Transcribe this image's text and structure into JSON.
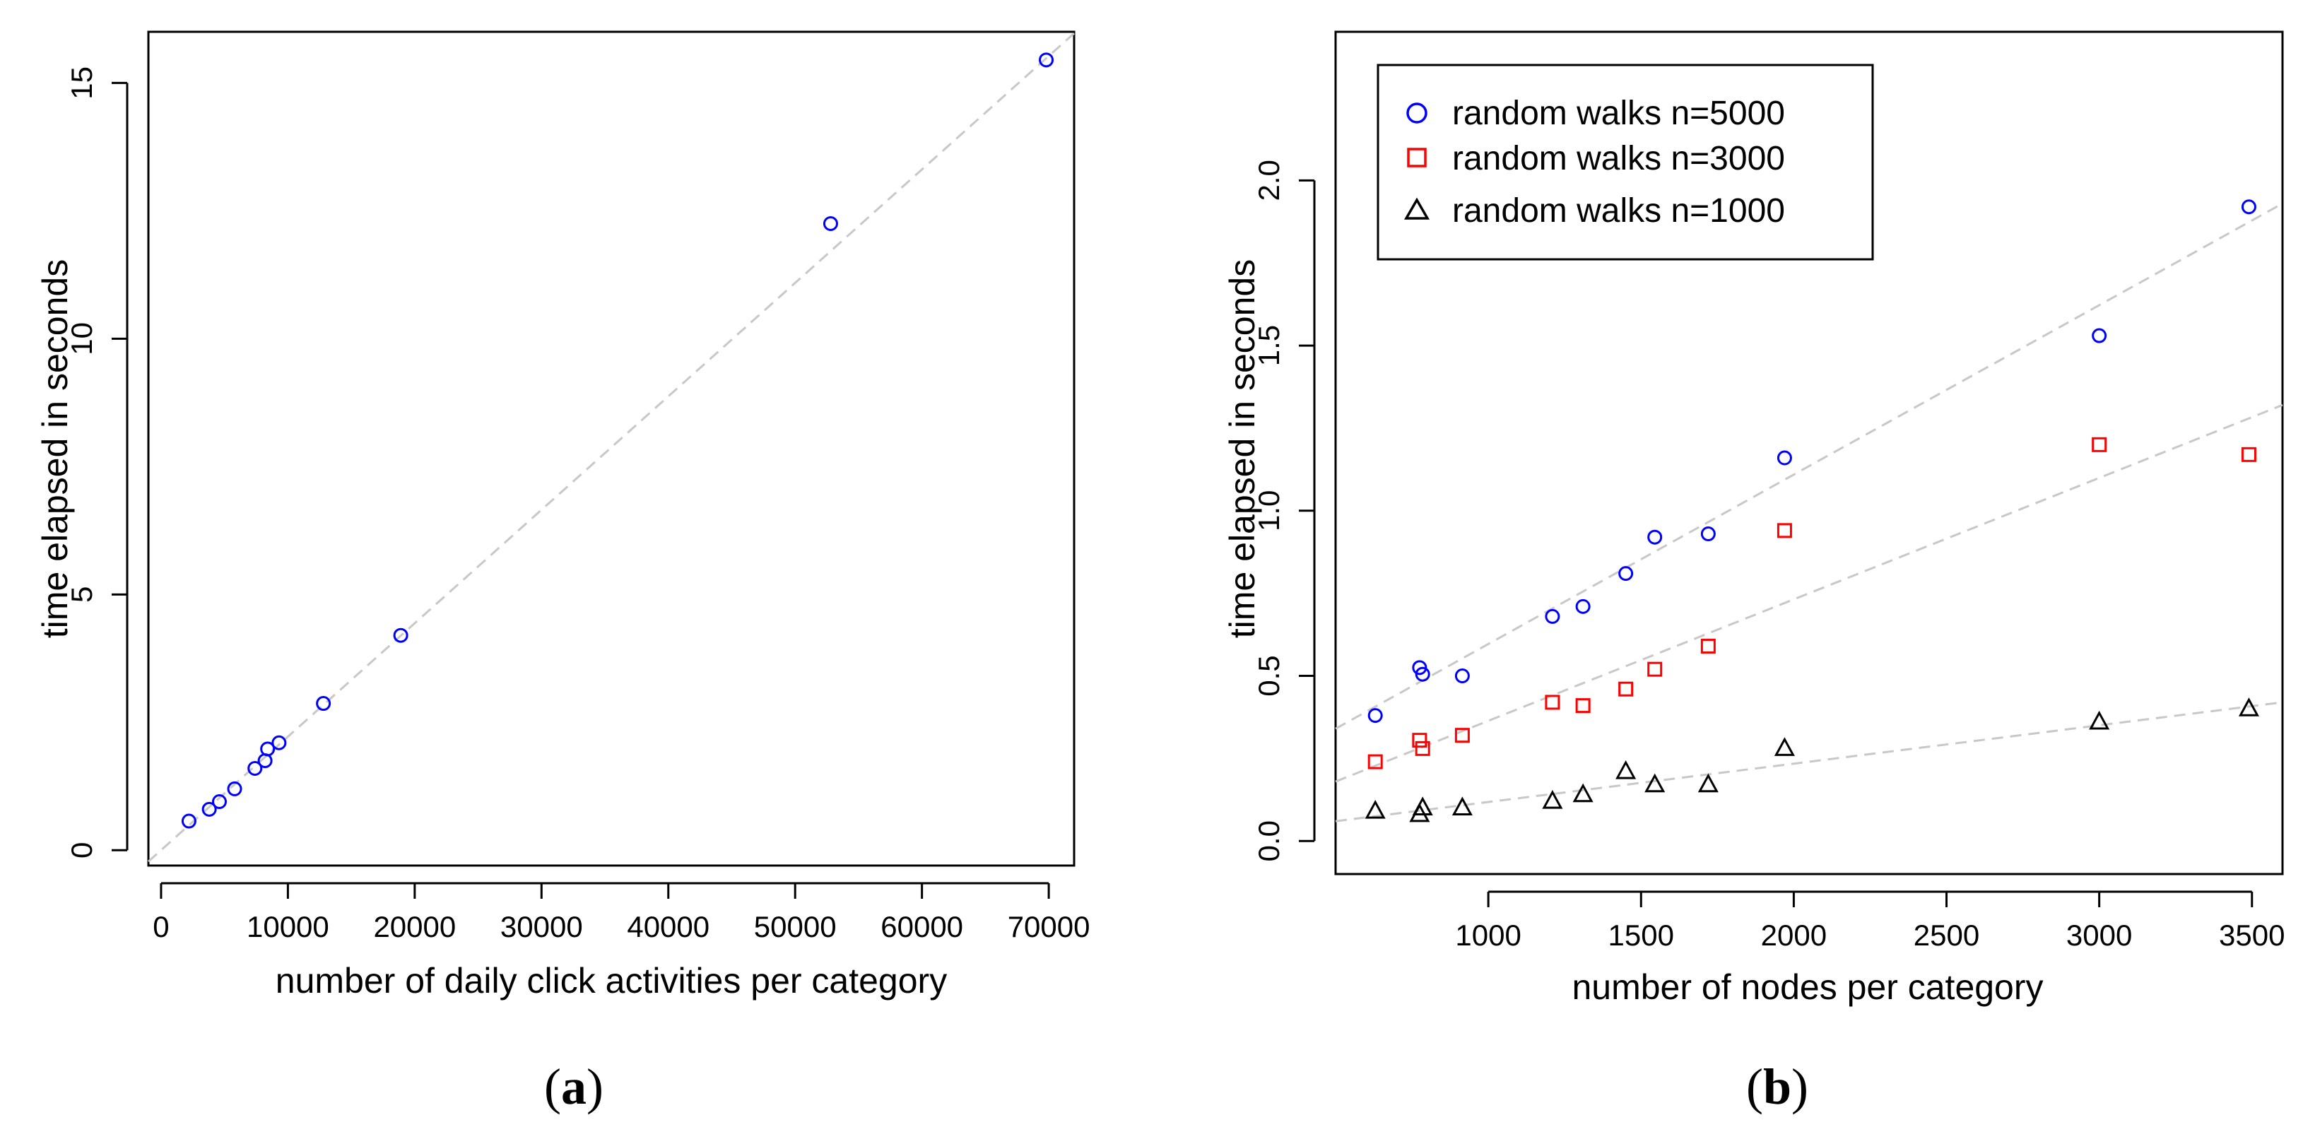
{
  "figure": {
    "panel_a_label": "a",
    "panel_b_label": "b"
  },
  "chart_data": [
    {
      "type": "scatter",
      "panel": "a",
      "title": "",
      "xlabel": "number of daily click activities per category",
      "ylabel": "time elapsed in seconds",
      "xlim": [
        -1000,
        72000
      ],
      "ylim": [
        -0.3,
        16.0
      ],
      "xticks": [
        0,
        10000,
        20000,
        30000,
        40000,
        50000,
        60000,
        70000
      ],
      "yticks": [
        0,
        5,
        10,
        15
      ],
      "grid": false,
      "marker_color": "#0000ff",
      "fit_line_color": "#c8c8c8",
      "series": [
        {
          "name": "points",
          "marker": "circle",
          "x": [
            2200,
            3800,
            4600,
            5800,
            7400,
            8200,
            8400,
            9300,
            12800,
            18900,
            52800,
            69800
          ],
          "y": [
            0.57,
            0.8,
            0.95,
            1.2,
            1.6,
            1.75,
            1.98,
            2.1,
            2.87,
            4.2,
            12.25,
            15.45
          ]
        }
      ],
      "fit_lines": [
        {
          "x": [
            -1000,
            72000
          ],
          "y": [
            -0.22,
            15.97
          ]
        }
      ]
    },
    {
      "type": "scatter",
      "panel": "b",
      "title": "",
      "xlabel": "number of nodes per category",
      "ylabel": "time elapsed in seconds",
      "xlim": [
        500,
        3600
      ],
      "ylim": [
        -0.1,
        2.45
      ],
      "xticks": [
        1000,
        1500,
        2000,
        2500,
        3000,
        3500
      ],
      "yticks": [
        0.0,
        0.5,
        1.0,
        1.5,
        2.0
      ],
      "grid": false,
      "legend_position": "top-left",
      "fit_line_color": "#c8c8c8",
      "series": [
        {
          "name": "random walks n=5000",
          "marker": "circle",
          "color": "#0000ff",
          "x": [
            630,
            775,
            785,
            915,
            1210,
            1310,
            1450,
            1545,
            1720,
            1970,
            3000,
            3490
          ],
          "y": [
            0.38,
            0.525,
            0.505,
            0.5,
            0.68,
            0.71,
            0.81,
            0.92,
            0.93,
            1.16,
            1.53,
            1.92
          ]
        },
        {
          "name": "random walks n=3000",
          "marker": "square",
          "color": "#ff0000",
          "x": [
            630,
            775,
            785,
            915,
            1210,
            1310,
            1450,
            1545,
            1720,
            1970,
            3000,
            3490
          ],
          "y": [
            0.24,
            0.305,
            0.28,
            0.32,
            0.42,
            0.41,
            0.46,
            0.52,
            0.59,
            0.94,
            1.2,
            1.17
          ]
        },
        {
          "name": "random walks n=1000",
          "marker": "triangle",
          "color": "#000000",
          "x": [
            630,
            775,
            785,
            915,
            1210,
            1310,
            1450,
            1545,
            1720,
            1970,
            3000,
            3490
          ],
          "y": [
            0.09,
            0.08,
            0.1,
            0.1,
            0.12,
            0.14,
            0.21,
            0.17,
            0.17,
            0.28,
            0.36,
            0.4
          ]
        }
      ],
      "fit_lines": [
        {
          "x": [
            500,
            3600
          ],
          "y": [
            0.34,
            1.93
          ]
        },
        {
          "x": [
            500,
            3600
          ],
          "y": [
            0.18,
            1.32
          ]
        },
        {
          "x": [
            500,
            3600
          ],
          "y": [
            0.06,
            0.42
          ]
        }
      ]
    }
  ]
}
